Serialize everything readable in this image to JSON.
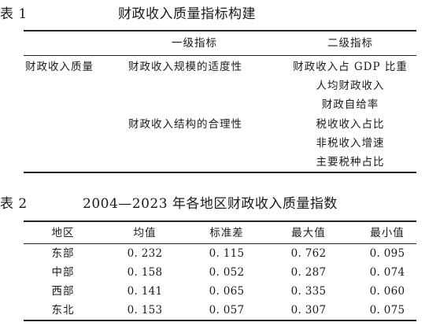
{
  "table1": {
    "number": "表 1",
    "title": "财政收入质量指标构建",
    "headers": [
      "一级指标",
      "二级指标"
    ],
    "category": "财政收入质量",
    "level1": [
      "财政收入规模的适度性",
      "财政收入结构的合理性"
    ],
    "level2": [
      "财政收入占 GDP 比重",
      "人均财政收入",
      "财政自给率",
      "税收收入占比",
      "非税收入增速",
      "主要税种占比"
    ]
  },
  "table2": {
    "number": "表 2",
    "title": "2004—2023 年各地区财政收入质量指数",
    "headers": [
      "地区",
      "均值",
      "标准差",
      "最大值",
      "最小值"
    ],
    "rows": [
      [
        "东部",
        "0. 232",
        "0. 115",
        "0. 762",
        "0. 095"
      ],
      [
        "中部",
        "0. 158",
        "0. 052",
        "0. 287",
        "0. 074"
      ],
      [
        "西部",
        "0. 141",
        "0. 065",
        "0. 335",
        "0. 060"
      ],
      [
        "东北",
        "0. 153",
        "0. 057",
        "0. 307",
        "0. 075"
      ]
    ]
  }
}
